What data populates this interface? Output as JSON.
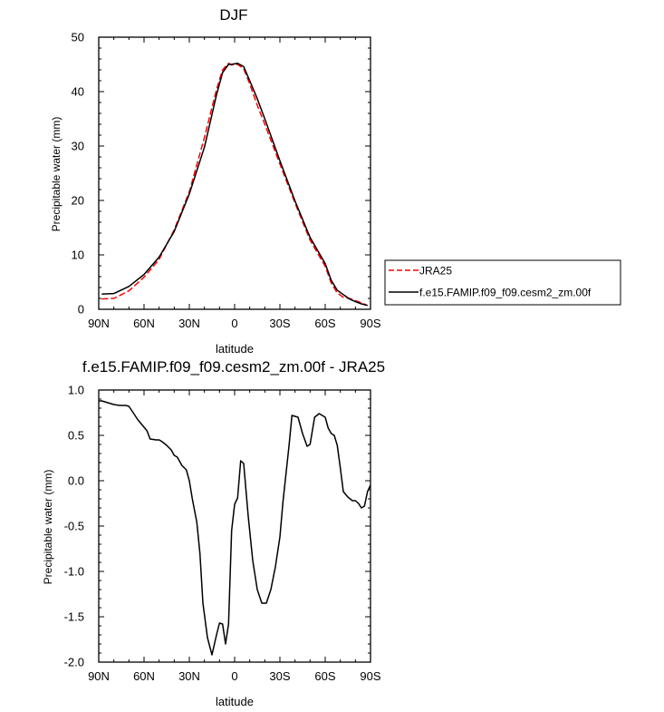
{
  "chart_data": [
    {
      "type": "line",
      "title": "DJF",
      "xlabel": "latitude",
      "ylabel": "Precipitable water (mm)",
      "xlim": [
        90,
        -90
      ],
      "ylim": [
        0,
        50
      ],
      "x_ticks": [
        {
          "value": 90,
          "label": "90N"
        },
        {
          "value": 60,
          "label": "60N"
        },
        {
          "value": 30,
          "label": "30N"
        },
        {
          "value": 0,
          "label": "0"
        },
        {
          "value": -30,
          "label": "30S"
        },
        {
          "value": -60,
          "label": "60S"
        },
        {
          "value": -90,
          "label": "90S"
        }
      ],
      "y_ticks": [
        0,
        10,
        20,
        30,
        40,
        50
      ],
      "legend_position": "right",
      "series": [
        {
          "name": "JRA25",
          "color": "#ff0000",
          "dash": "dashed",
          "x": [
            88,
            80,
            70,
            60,
            50,
            40,
            30,
            20,
            12,
            8,
            4,
            2,
            -2,
            -6,
            -10,
            -15,
            -20,
            -30,
            -40,
            -50,
            -60,
            -64,
            -68,
            -72,
            -76,
            -80,
            -84,
            -88
          ],
          "y": [
            1.9,
            2.0,
            3.4,
            5.9,
            9.2,
            14.6,
            21.6,
            31.6,
            40.4,
            44.0,
            45.2,
            44.9,
            45.0,
            44.2,
            41.4,
            37.5,
            34.0,
            26.7,
            19.5,
            12.7,
            7.9,
            4.8,
            3.0,
            2.2,
            2.0,
            1.6,
            1.2,
            0.7
          ]
        },
        {
          "name": "f.e15.FAMIP.f09_f09.cesm2_zm.00f",
          "color": "#000000",
          "dash": "solid",
          "x": [
            88,
            80,
            70,
            60,
            50,
            40,
            30,
            20,
            12,
            8,
            4,
            2,
            -2,
            -6,
            -10,
            -15,
            -20,
            -30,
            -40,
            -50,
            -60,
            -64,
            -68,
            -72,
            -76,
            -80,
            -84,
            -88
          ],
          "y": [
            2.8,
            2.9,
            4.2,
            6.4,
            9.6,
            14.3,
            21.2,
            29.8,
            39.4,
            43.5,
            45.0,
            45.0,
            45.2,
            44.6,
            42.0,
            38.7,
            35.0,
            27.3,
            19.9,
            13.2,
            8.4,
            5.3,
            3.5,
            2.7,
            1.9,
            1.4,
            1.0,
            0.7
          ]
        }
      ]
    },
    {
      "type": "line",
      "title": "f.e15.FAMIP.f09_f09.cesm2_zm.00f - JRA25",
      "xlabel": "latitude",
      "ylabel": "Precipitable water (mm)",
      "xlim": [
        90,
        -90
      ],
      "ylim": [
        -2.0,
        1.0
      ],
      "x_ticks": [
        {
          "value": 90,
          "label": "90N"
        },
        {
          "value": 60,
          "label": "60N"
        },
        {
          "value": 30,
          "label": "30N"
        },
        {
          "value": 0,
          "label": "0"
        },
        {
          "value": -30,
          "label": "30S"
        },
        {
          "value": -60,
          "label": "60S"
        },
        {
          "value": -90,
          "label": "90S"
        }
      ],
      "y_ticks": [
        {
          "value": 1.0,
          "label": "1.0"
        },
        {
          "value": 0.5,
          "label": "0.5"
        },
        {
          "value": 0.0,
          "label": "0.0"
        },
        {
          "value": -0.5,
          "label": "-0.5"
        },
        {
          "value": -1.0,
          "label": "-1.0"
        },
        {
          "value": -1.5,
          "label": "-1.5"
        },
        {
          "value": -2.0,
          "label": "-2.0"
        }
      ],
      "series": [
        {
          "color": "#000000",
          "dash": "solid",
          "x": [
            90,
            88,
            84,
            80,
            76,
            72,
            70,
            68,
            64,
            62,
            58,
            56,
            52,
            50,
            48,
            45,
            42,
            40,
            38,
            35,
            32,
            30,
            28,
            25,
            23,
            21,
            18,
            15,
            12,
            10,
            8,
            6,
            4,
            2,
            0,
            -2,
            -4,
            -6,
            -9,
            -12,
            -15,
            -18,
            -21,
            -24,
            -27,
            -30,
            -32,
            -36,
            -38,
            -42,
            -45,
            -48,
            -50,
            -53,
            -56,
            -60,
            -62,
            -64,
            -66,
            -68,
            -70,
            -72,
            -75,
            -78,
            -80,
            -82,
            -84,
            -86,
            -88,
            -90
          ],
          "y": [
            0.88,
            0.88,
            0.86,
            0.84,
            0.83,
            0.83,
            0.82,
            0.77,
            0.67,
            0.63,
            0.55,
            0.46,
            0.45,
            0.45,
            0.43,
            0.39,
            0.34,
            0.28,
            0.26,
            0.17,
            0.12,
            0.0,
            -0.2,
            -0.46,
            -0.8,
            -1.35,
            -1.73,
            -1.92,
            -1.7,
            -1.57,
            -1.58,
            -1.8,
            -1.58,
            -0.55,
            -0.26,
            -0.19,
            0.22,
            0.19,
            -0.39,
            -0.88,
            -1.2,
            -1.35,
            -1.35,
            -1.2,
            -0.95,
            -0.62,
            -0.24,
            0.38,
            0.72,
            0.7,
            0.52,
            0.38,
            0.4,
            0.7,
            0.74,
            0.7,
            0.58,
            0.52,
            0.5,
            0.39,
            0.14,
            -0.12,
            -0.18,
            -0.22,
            -0.22,
            -0.25,
            -0.3,
            -0.28,
            -0.12,
            -0.05
          ]
        }
      ]
    }
  ]
}
